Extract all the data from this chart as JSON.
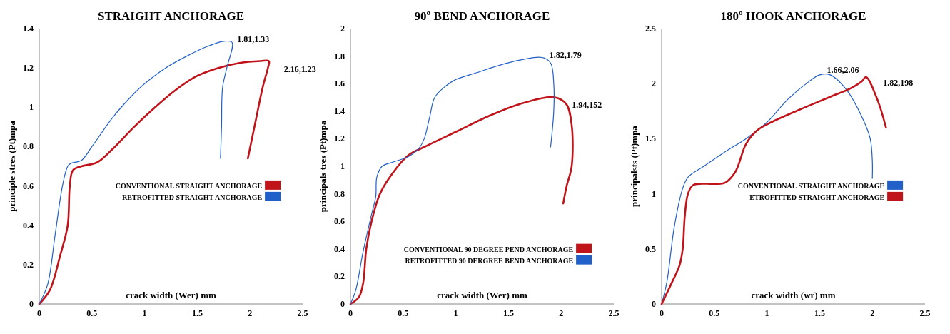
{
  "chart_data": [
    {
      "type": "line",
      "title": "STRAIGHT ANCHORAGE",
      "xlabel": "crack width (Wer) mm",
      "ylabel": "principle stres (Pt)mpa",
      "xlim": [
        0,
        2.5
      ],
      "xticks": [
        0,
        0.5,
        1,
        1.5,
        2,
        2.5
      ],
      "ylim": [
        0,
        1.4
      ],
      "yticks": [
        0,
        0.2,
        0.4,
        0.6,
        0.8,
        1,
        1.2,
        1.4
      ],
      "legend": "right",
      "marker": "none",
      "line_style": "solid",
      "annotations": [
        {
          "text": "1.81,1.33",
          "x": 1.81,
          "y": 1.33
        },
        {
          "text": "2.16,1.23",
          "x": 2.16,
          "y": 1.23
        }
      ],
      "series": [
        {
          "name": "CONVENTIONAL STRAIGHT ANCHORAGE",
          "color": "#c0141a",
          "x": [
            0,
            0.1,
            0.2,
            0.27,
            0.29,
            0.32,
            0.4,
            0.55,
            0.7,
            0.9,
            1.1,
            1.3,
            1.5,
            1.7,
            1.9,
            2.1,
            2.18,
            2.17,
            2.12,
            2.05,
            1.98
          ],
          "values": [
            0,
            0.07,
            0.25,
            0.4,
            0.6,
            0.68,
            0.7,
            0.72,
            0.79,
            0.9,
            1,
            1.09,
            1.16,
            1.2,
            1.225,
            1.235,
            1.235,
            1.2,
            1.1,
            0.92,
            0.74
          ]
        },
        {
          "name": "RETROFITTED STRAIGHT ANCHORAGE",
          "color": "#2060c8",
          "x": [
            0,
            0.08,
            0.15,
            0.22,
            0.27,
            0.3,
            0.4,
            0.5,
            0.7,
            0.9,
            1,
            1.2,
            1.4,
            1.6,
            1.75,
            1.83,
            1.78,
            1.74,
            1.73,
            1.72
          ],
          "values": [
            0,
            0.1,
            0.35,
            0.6,
            0.7,
            0.715,
            0.73,
            0.8,
            0.95,
            1.07,
            1.12,
            1.2,
            1.26,
            1.31,
            1.335,
            1.33,
            1.2,
            1.1,
            0.9,
            0.74
          ]
        }
      ]
    },
    {
      "type": "line",
      "title": "90º BEND ANCHORAGE",
      "xlabel": "crack width (Wer) mm",
      "ylabel": "principals tres (Pt)mpa",
      "xlim": [
        0,
        2.5
      ],
      "xticks": [
        0,
        0.5,
        1,
        1.5,
        2,
        2.5
      ],
      "ylim": [
        0,
        2
      ],
      "yticks": [
        0,
        0.2,
        0.4,
        0.6,
        0.8,
        1,
        1.2,
        1.4,
        1.6,
        1.8,
        2
      ],
      "legend": "bottom",
      "marker": "none",
      "line_style": "solid",
      "annotations": [
        {
          "text": "1.82,1.79",
          "x": 1.82,
          "y": 1.79
        },
        {
          "text": "1.94,152",
          "x": 1.94,
          "y": 1.5
        }
      ],
      "series": [
        {
          "name": "CONVENTIONAL 90 DEGREE PEND ANCHORAGE",
          "color": "#c0141a",
          "x": [
            0,
            0.08,
            0.12,
            0.15,
            0.2,
            0.28,
            0.4,
            0.55,
            0.7,
            1,
            1.3,
            1.6,
            1.94,
            2.05,
            2.1,
            2.1,
            2.05,
            2.02
          ],
          "values": [
            0,
            0.05,
            0.15,
            0.4,
            0.6,
            0.8,
            0.95,
            1.08,
            1.14,
            1.25,
            1.36,
            1.45,
            1.5,
            1.45,
            1.3,
            1,
            0.85,
            0.73
          ]
        },
        {
          "name": "RETROFITTED 90 DERGREE BEND ANCHORAGE",
          "color": "#2060c8",
          "x": [
            0,
            0.05,
            0.12,
            0.2,
            0.24,
            0.25,
            0.3,
            0.4,
            0.55,
            0.65,
            0.7,
            0.75,
            0.8,
            0.9,
            1,
            1.2,
            1.4,
            1.6,
            1.82,
            1.9,
            1.93,
            1.93,
            1.9
          ],
          "values": [
            0,
            0.1,
            0.38,
            0.65,
            0.78,
            0.92,
            1,
            1.03,
            1.07,
            1.13,
            1.2,
            1.35,
            1.5,
            1.58,
            1.63,
            1.68,
            1.73,
            1.77,
            1.79,
            1.75,
            1.6,
            1.4,
            1.14
          ]
        }
      ]
    },
    {
      "type": "line",
      "title": "180º HOOK ANCHORAGE",
      "xlabel": "crack width (wr) mm",
      "ylabel": "principalsts (Pt)mpa",
      "xlim": [
        0,
        2.5
      ],
      "xticks": [
        0,
        0.5,
        1,
        1.5,
        2,
        2.5
      ],
      "ylim": [
        0,
        2.5
      ],
      "yticks": [
        0,
        0.5,
        1,
        1.5,
        2,
        2.5
      ],
      "legend": "right",
      "marker": "none",
      "line_style": "solid",
      "annotations": [
        {
          "text": "1.66,2.06",
          "x": 1.5,
          "y": 2.1
        },
        {
          "text": "1.82,198",
          "x": 1.94,
          "y": 2.07
        }
      ],
      "series": [
        {
          "name": "CONVENTIONAL STRAIGHT ANCHORAGE",
          "color": "#2060c8",
          "x": [
            0,
            0.05,
            0.12,
            0.2,
            0.25,
            0.4,
            0.6,
            0.8,
            1,
            1.2,
            1.4,
            1.5,
            1.6,
            1.75,
            1.9,
            1.98,
            2,
            2
          ],
          "values": [
            0,
            0.2,
            0.7,
            1.05,
            1.15,
            1.25,
            1.38,
            1.5,
            1.65,
            1.86,
            2.02,
            2.08,
            2.08,
            1.95,
            1.7,
            1.5,
            1.3,
            1.14
          ]
        },
        {
          "name": "ETROFITTED STRAIGHT ANCHORAGE",
          "color": "#c0141a",
          "x": [
            0,
            0.1,
            0.17,
            0.2,
            0.22,
            0.25,
            0.3,
            0.5,
            0.6,
            0.7,
            0.8,
            0.9,
            1,
            1.3,
            1.6,
            1.8,
            1.9,
            1.94,
            2.05,
            2.13
          ],
          "values": [
            0,
            0.2,
            0.35,
            0.5,
            0.8,
            1,
            1.08,
            1.09,
            1.1,
            1.2,
            1.45,
            1.57,
            1.63,
            1.76,
            1.88,
            1.96,
            2.02,
            2.06,
            1.85,
            1.6
          ]
        }
      ]
    }
  ]
}
